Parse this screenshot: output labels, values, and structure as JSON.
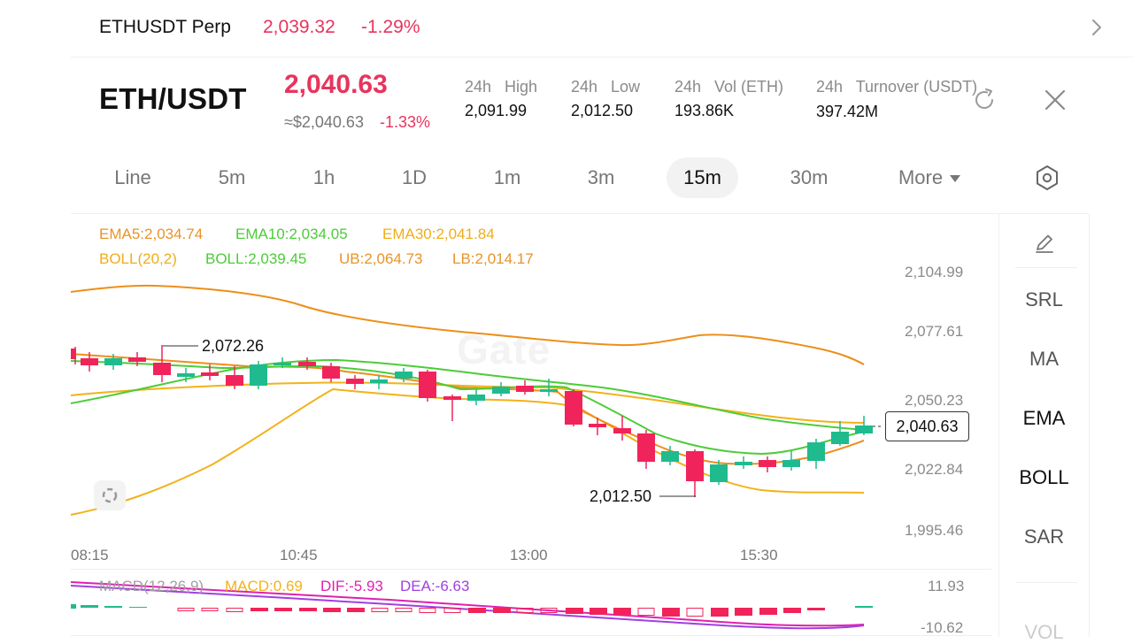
{
  "topbar": {
    "pair": "ETHUSDT Perp",
    "price": "2,039.32",
    "change": "-1.29%"
  },
  "header": {
    "pair_title": "ETH/USDT",
    "last_price": "2,040.63",
    "approx_price": "≈$2,040.63",
    "change_pct": "-1.33%",
    "stats": [
      {
        "label": "24h   High",
        "value": "2,091.99"
      },
      {
        "label": "24h   Low",
        "value": "2,012.50"
      },
      {
        "label": "24h   Vol (ETH)",
        "value": "193.86K"
      },
      {
        "label": "24h   Turnover (USDT)",
        "value": "397.42M"
      }
    ]
  },
  "intervals": {
    "tabs": [
      "Line",
      "5m",
      "1h",
      "1D",
      "1m",
      "3m",
      "15m",
      "30m"
    ],
    "active": "15m",
    "more_label": "More"
  },
  "indicators": {
    "ema5": "EMA5:2,034.74",
    "ema10": "EMA10:2,034.05",
    "ema30": "EMA30:2,041.84",
    "boll": "BOLL(20,2)",
    "boll_mid": "BOLL:2,039.45",
    "ub": "UB:2,064.73",
    "lb": "LB:2,014.17"
  },
  "chart": {
    "y_labels": [
      "2,104.99",
      "2,077.61",
      "2,050.23",
      "2,022.84",
      "1,995.46"
    ],
    "x_labels": [
      "08:15",
      "10:45",
      "13:00",
      "15:30"
    ],
    "high_label": "2,072.26",
    "low_label": "2,012.50",
    "current_price": "2,040.63",
    "watermark": "Gate"
  },
  "macd": {
    "title": "MACD(12,26,9)",
    "macd": "MACD:0.69",
    "dif": "DIF:-5.93",
    "dea": "DEA:-6.63",
    "y_top": "11.93",
    "y_bottom": "-10.62"
  },
  "side_panel": {
    "items": [
      "SRL",
      "MA",
      "EMA",
      "BOLL",
      "SAR",
      "VOL"
    ],
    "active": "EMA"
  },
  "colors": {
    "down": "#f0245a",
    "up": "#1fbb8e",
    "ema5": "#f0901d",
    "ema10": "#4ccc38",
    "ema30": "#f2b21a",
    "dif": "#e020b0",
    "dea": "#a040e0"
  },
  "icons": [
    "chevron-right-icon",
    "refresh-icon",
    "close-icon",
    "settings-icon",
    "pencil-icon",
    "chart-toggle-icon"
  ]
}
